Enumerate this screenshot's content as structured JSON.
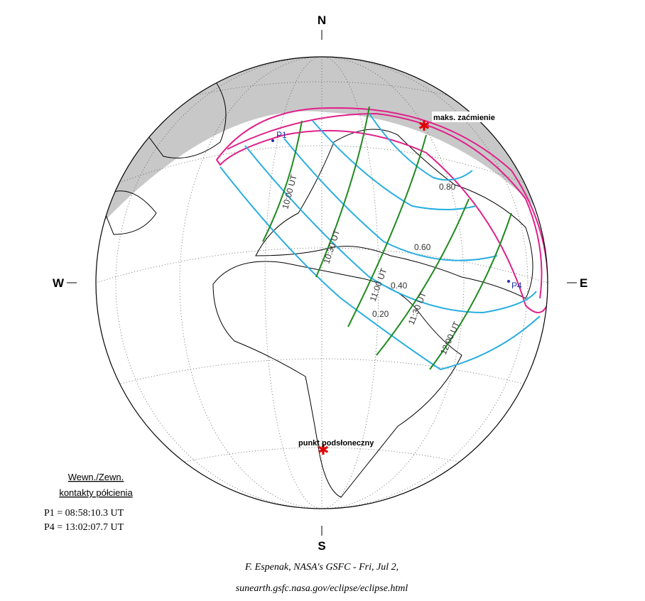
{
  "compass": {
    "north": "N",
    "west": "W",
    "east": "E",
    "south": "S"
  },
  "points": {
    "p1": "P1",
    "p4": "P4",
    "maximum": "maks. zaćmienie",
    "subsolar": "punkt podsłoneczny"
  },
  "contours": {
    "magnitudes": [
      "0.80",
      "0.60",
      "0.40",
      "0.20"
    ],
    "times": [
      "10:00 UT",
      "10:30 UT",
      "11:00 UT",
      "11:30 UT",
      "12:00 UT"
    ]
  },
  "legend": {
    "title": "Wewn./Zewn.",
    "subtitle": "kontakty półcienia",
    "lines": [
      "P1 = 08:58:10.3 UT",
      "P4 = 13:02:07.7 UT"
    ]
  },
  "credit": {
    "line1": "F. Espenak, NASA's GSFC - Fri, Jul 2,",
    "line2": "sunearth.gsfc.nasa.gov/eclipse/eclipse.html"
  }
}
